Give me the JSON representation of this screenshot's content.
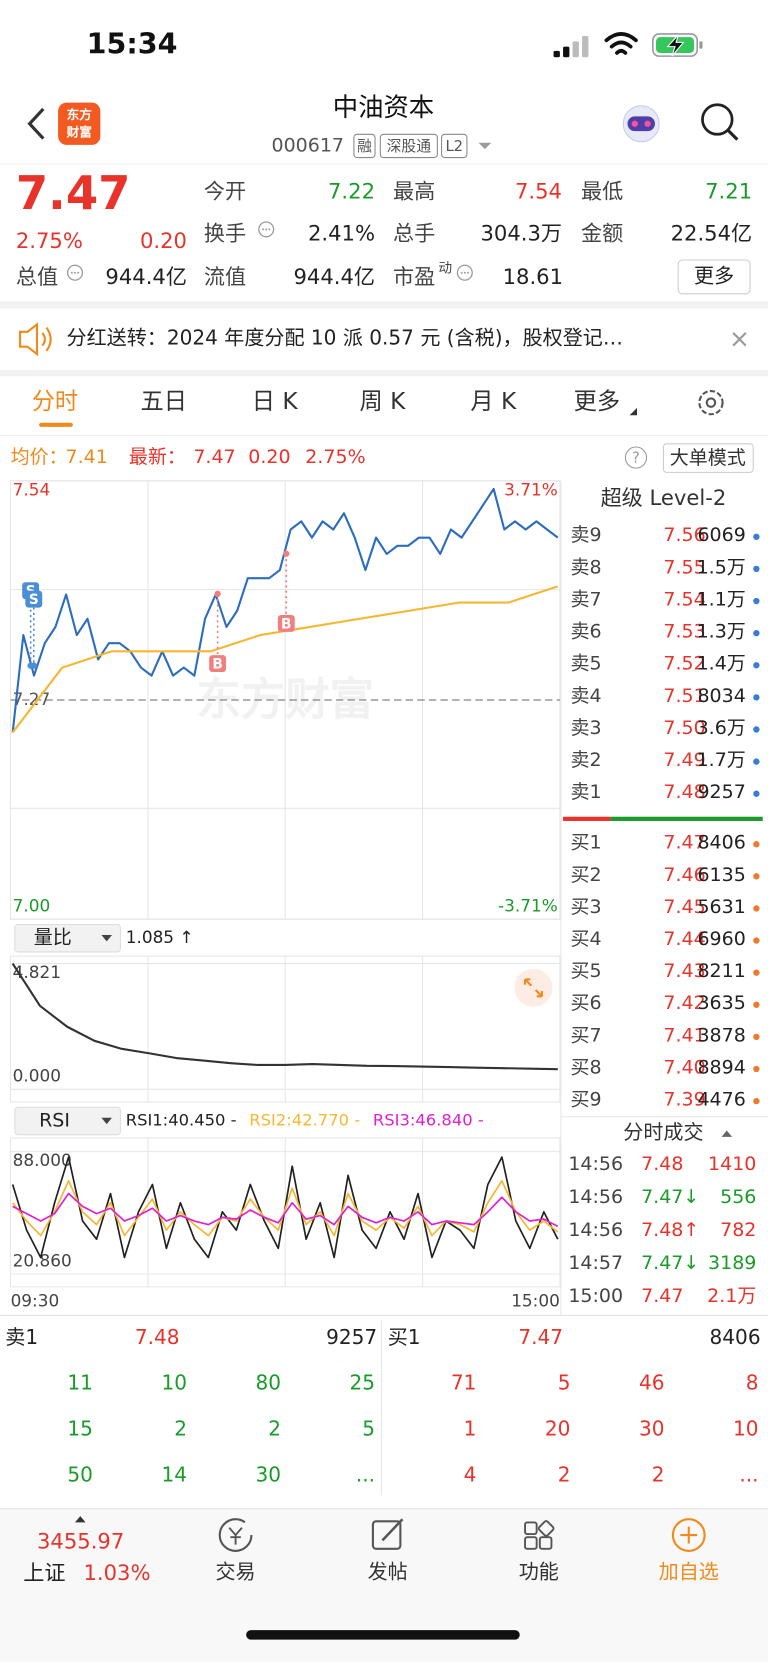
{
  "status_bar": {
    "time": "15:34"
  },
  "header": {
    "logo": [
      "东方",
      "财富"
    ],
    "title": "中油资本",
    "code": "000617",
    "tags": [
      "融",
      "深股通",
      "L2"
    ]
  },
  "quote": {
    "price": "7.47",
    "change_percent": "2.75%",
    "change": "0.20",
    "fields": [
      {
        "label": "今开",
        "value": "7.22",
        "color": "#1a9b2a"
      },
      {
        "label": "最高",
        "value": "7.54",
        "color": "#e8332b"
      },
      {
        "label": "最低",
        "value": "7.21",
        "color": "#1a9b2a"
      },
      {
        "label": "换手",
        "value": "2.41%",
        "color": "#222222"
      },
      {
        "label": "总手",
        "value": "304.3万",
        "color": "#222222"
      },
      {
        "label": "金额",
        "value": "22.54亿",
        "color": "#222222"
      },
      {
        "label": "总值",
        "value": "944.4亿",
        "color": "#222222"
      },
      {
        "label": "流值",
        "value": "944.4亿",
        "color": "#222222"
      },
      {
        "label": "市盈",
        "superscript": "动",
        "value": "18.61",
        "color": "#222222"
      }
    ],
    "more_button": "更多"
  },
  "notice": "分红送转：2024 年度分配 10 派 0.57 元 (含税)，股权登记…",
  "tabs": [
    "分时",
    "五日",
    "日 K",
    "周 K",
    "月 K",
    "更多"
  ],
  "info_bar": {
    "avg_label": "均价：",
    "avg": "7.41",
    "latest_label": "最新：",
    "latest": "7.47",
    "change": "0.20",
    "change_percent": "2.75%",
    "help": "?",
    "big_order_button": "大单模式"
  },
  "chart_data": [
    {
      "type": "line",
      "ylim": [
        7.0,
        7.54
      ],
      "y2lim": [
        -3.71,
        3.71
      ],
      "yticks": [
        {
          "value": 7.54,
          "label": "7.54"
        },
        {
          "value": 7.27,
          "label": "7.27"
        },
        {
          "value": 7,
          "label": "7.00"
        }
      ],
      "y2ticks": [
        {
          "value": 3.71,
          "label": "3.71%"
        },
        {
          "value": -3.71,
          "label": "-3.71%"
        }
      ],
      "x_labels": [
        "09:30",
        "15:00"
      ],
      "watermark": "东方财富",
      "trade_markers": [
        "S",
        "S",
        "B",
        "B"
      ],
      "series": [
        {
          "color": "#2d6dbd",
          "values": [
            7.23,
            7.35,
            7.3,
            7.34,
            7.36,
            7.4,
            7.35,
            7.37,
            7.32,
            7.34,
            7.34,
            7.33,
            7.31,
            7.3,
            7.33,
            7.3,
            7.31,
            7.3,
            7.37,
            7.4,
            7.36,
            7.38,
            7.42,
            7.42,
            7.42,
            7.43,
            7.48,
            7.49,
            7.47,
            7.49,
            7.48,
            7.5,
            7.47,
            7.43,
            7.47,
            7.45,
            7.46,
            7.46,
            7.47,
            7.47,
            7.45,
            7.48,
            7.47,
            7.49,
            7.51,
            7.53,
            7.48,
            7.49,
            7.48,
            7.49,
            7.48,
            7.47
          ]
        },
        {
          "color": "#f5b731",
          "values": [
            7.23,
            7.31,
            7.33,
            7.33,
            7.33,
            7.35,
            7.36,
            7.37,
            7.38,
            7.39,
            7.39,
            7.41
          ]
        }
      ]
    },
    {
      "type": "line",
      "indicator": "量比",
      "current": "1.085 ↑",
      "ylim": [
        0,
        4.821
      ],
      "yticks": [
        {
          "value": 4.821,
          "label": "4.821"
        },
        {
          "value": 0,
          "label": "0.000"
        }
      ],
      "series": [
        {
          "color": "#333333",
          "values": [
            4.82,
            3.2,
            2.4,
            1.86,
            1.55,
            1.38,
            1.2,
            1.1,
            1.0,
            0.93,
            0.93,
            0.97,
            0.93,
            0.9,
            0.89,
            0.87,
            0.85,
            0.83,
            0.81,
            0.79,
            0.77
          ]
        }
      ]
    },
    {
      "type": "line",
      "indicator": "RSI",
      "ylim": [
        20.86,
        88
      ],
      "yticks": [
        {
          "value": 88,
          "label": "88.000"
        },
        {
          "value": 20.86,
          "label": "20.860"
        }
      ],
      "series": [
        {
          "name": "RSI1:40.450 -",
          "color": "#222222",
          "values": [
            70,
            45,
            30,
            60,
            85,
            50,
            40,
            65,
            30,
            55,
            70,
            35,
            60,
            40,
            30,
            55,
            45,
            70,
            50,
            35,
            80,
            40,
            60,
            30,
            75,
            45,
            35,
            55,
            40,
            65,
            30,
            50,
            45,
            35,
            70,
            85,
            50,
            35,
            55,
            40
          ]
        },
        {
          "name": "RSI2:42.770 -",
          "color": "#f5b731",
          "values": [
            60,
            50,
            42,
            55,
            72,
            55,
            48,
            60,
            42,
            52,
            62,
            45,
            55,
            48,
            42,
            52,
            50,
            62,
            52,
            45,
            68,
            48,
            55,
            42,
            65,
            50,
            45,
            52,
            46,
            58,
            42,
            50,
            48,
            44,
            60,
            72,
            55,
            45,
            50,
            44
          ]
        },
        {
          "name": "RSI3:46.840 -",
          "color": "#e020d0",
          "values": [
            58,
            54,
            50,
            54,
            65,
            58,
            54,
            57,
            50,
            53,
            57,
            50,
            53,
            50,
            48,
            52,
            51,
            56,
            52,
            49,
            60,
            51,
            53,
            48,
            58,
            52,
            49,
            52,
            50,
            55,
            48,
            50,
            49,
            48,
            55,
            63,
            55,
            50,
            51,
            47
          ]
        }
      ]
    }
  ],
  "level2": {
    "title": "超级 Level-2",
    "asks": [
      {
        "label": "卖9",
        "price": "7.56",
        "volume": "6069"
      },
      {
        "label": "卖8",
        "price": "7.55",
        "volume": "1.5万"
      },
      {
        "label": "卖7",
        "price": "7.54",
        "volume": "1.1万"
      },
      {
        "label": "卖6",
        "price": "7.53",
        "volume": "1.3万"
      },
      {
        "label": "卖5",
        "price": "7.52",
        "volume": "1.4万"
      },
      {
        "label": "卖4",
        "price": "7.51",
        "volume": "8034"
      },
      {
        "label": "卖3",
        "price": "7.50",
        "volume": "3.6万"
      },
      {
        "label": "卖2",
        "price": "7.49",
        "volume": "1.7万"
      },
      {
        "label": "卖1",
        "price": "7.48",
        "volume": "9257"
      }
    ],
    "bids": [
      {
        "label": "买1",
        "price": "7.47",
        "volume": "8406"
      },
      {
        "label": "买2",
        "price": "7.46",
        "volume": "6135"
      },
      {
        "label": "买3",
        "price": "7.45",
        "volume": "5631"
      },
      {
        "label": "买4",
        "price": "7.44",
        "volume": "6960"
      },
      {
        "label": "买5",
        "price": "7.43",
        "volume": "8211"
      },
      {
        "label": "买6",
        "price": "7.42",
        "volume": "3635"
      },
      {
        "label": "买7",
        "price": "7.41",
        "volume": "3878"
      },
      {
        "label": "买8",
        "price": "7.40",
        "volume": "8894"
      },
      {
        "label": "买9",
        "price": "7.39",
        "volume": "4476"
      }
    ]
  },
  "trades": {
    "title": "分时成交",
    "rows": [
      {
        "time": "14:56",
        "price": "7.48",
        "volume": "1410",
        "color": "#e8332b"
      },
      {
        "time": "14:56",
        "price": "7.47↓",
        "volume": "556",
        "color": "#1a9b2a"
      },
      {
        "time": "14:56",
        "price": "7.48↑",
        "volume": "782",
        "color": "#e8332b"
      },
      {
        "time": "14:57",
        "price": "7.47↓",
        "volume": "3189",
        "color": "#1a9b2a"
      },
      {
        "time": "15:00",
        "price": "7.47",
        "volume": "2.1万",
        "color": "#e8332b"
      }
    ]
  },
  "queue": {
    "sell": {
      "label": "卖1",
      "price": "7.48",
      "volume": "9257",
      "orders": [
        "11",
        "10",
        "80",
        "25",
        "15",
        "2",
        "2",
        "5",
        "50",
        "14",
        "30",
        "..."
      ]
    },
    "buy": {
      "label": "买1",
      "price": "7.47",
      "volume": "8406",
      "orders": [
        "71",
        "5",
        "46",
        "8",
        "1",
        "20",
        "30",
        "10",
        "4",
        "2",
        "2",
        "..."
      ]
    }
  },
  "tab_bar": {
    "index": {
      "value": "3455.97",
      "name": "上证",
      "change": "1.03%"
    },
    "items": [
      "交易",
      "发帖",
      "功能",
      "加自选"
    ]
  }
}
